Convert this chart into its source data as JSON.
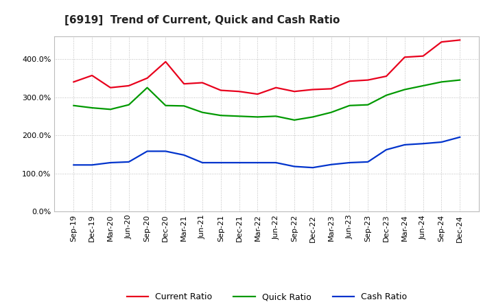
{
  "title": "[6919]  Trend of Current, Quick and Cash Ratio",
  "x_labels": [
    "Sep-19",
    "Dec-19",
    "Mar-20",
    "Jun-20",
    "Sep-20",
    "Dec-20",
    "Mar-21",
    "Jun-21",
    "Sep-21",
    "Dec-21",
    "Mar-22",
    "Jun-22",
    "Sep-22",
    "Dec-22",
    "Mar-23",
    "Jun-23",
    "Sep-23",
    "Dec-23",
    "Mar-24",
    "Jun-24",
    "Sep-24",
    "Dec-24"
  ],
  "current_ratio": [
    340,
    357,
    325,
    330,
    350,
    393,
    335,
    338,
    318,
    315,
    308,
    325,
    315,
    320,
    322,
    342,
    345,
    355,
    405,
    408,
    445,
    450
  ],
  "quick_ratio": [
    278,
    272,
    268,
    280,
    325,
    278,
    277,
    260,
    252,
    250,
    248,
    250,
    240,
    248,
    260,
    278,
    280,
    305,
    320,
    330,
    340,
    345
  ],
  "cash_ratio": [
    122,
    122,
    128,
    130,
    158,
    158,
    148,
    128,
    128,
    128,
    128,
    128,
    118,
    115,
    123,
    128,
    130,
    162,
    175,
    178,
    182,
    195
  ],
  "current_color": "#e8001c",
  "quick_color": "#009900",
  "cash_color": "#0033cc",
  "ylim": [
    0,
    460
  ],
  "yticks": [
    0,
    100,
    200,
    300,
    400
  ],
  "background_color": "#ffffff",
  "grid_color": "#bbbbbb",
  "legend_labels": [
    "Current Ratio",
    "Quick Ratio",
    "Cash Ratio"
  ],
  "title_fontsize": 11,
  "tick_fontsize": 8,
  "line_width": 1.6
}
